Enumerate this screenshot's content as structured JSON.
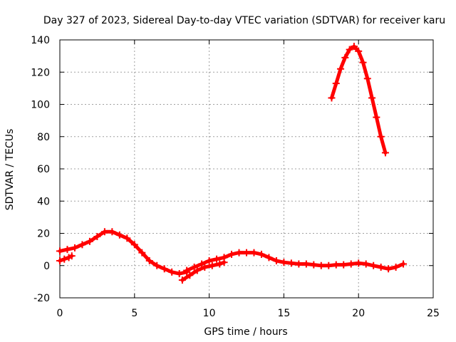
{
  "chart_data": {
    "type": "scatter",
    "title": "Day 327 of 2023, Sidereal Day-to-day VTEC variation (SDTVAR) for receiver karu",
    "xlabel": "GPS time / hours",
    "ylabel": "SDTVAR / TECUs",
    "xlim": [
      0,
      25
    ],
    "ylim": [
      -20,
      140
    ],
    "xticks": [
      0,
      5,
      10,
      15,
      20,
      25
    ],
    "yticks": [
      -20,
      0,
      20,
      40,
      60,
      80,
      100,
      120,
      140
    ],
    "grid": true,
    "marker": "plus",
    "series": [
      {
        "name": "SDTVAR",
        "color": "#ff0000",
        "segments": [
          {
            "x": [
              0.0,
              0.3,
              0.6,
              0.8
            ],
            "y": [
              3,
              4,
              5,
              6
            ]
          },
          {
            "x": [
              0.0,
              0.5,
              1.0,
              1.5,
              2.0,
              2.5,
              3.0,
              3.5,
              4.0,
              4.5,
              5.0,
              5.5,
              6.0,
              6.5,
              7.0,
              7.5,
              8.0,
              8.5
            ],
            "y": [
              9,
              10,
              11,
              13,
              15,
              18,
              21,
              21,
              19,
              17,
              13,
              8,
              3,
              0,
              -2,
              -4,
              -5,
              -4
            ]
          },
          {
            "x": [
              8.2,
              8.7,
              9.2,
              9.7,
              10.2,
              10.7,
              11.0
            ],
            "y": [
              -9,
              -6,
              -3,
              -1,
              0,
              1,
              2
            ]
          },
          {
            "x": [
              8.5,
              9.0,
              9.5,
              10.0,
              10.5,
              11.0
            ],
            "y": [
              -3,
              -1,
              1,
              3,
              4,
              5
            ]
          },
          {
            "x": [
              11.0,
              11.5,
              12.0,
              12.5,
              13.0,
              13.5,
              14.0,
              14.5,
              15.0,
              15.5,
              16.0,
              16.5,
              17.0,
              17.5,
              18.0,
              18.5,
              19.0,
              19.5,
              20.0,
              20.5,
              21.0,
              21.5,
              22.0,
              22.5,
              23.0
            ],
            "y": [
              5,
              7,
              8,
              8,
              8,
              7,
              5,
              3,
              2,
              1.5,
              1,
              1,
              0.5,
              0,
              0,
              0.5,
              0.5,
              1,
              1.5,
              1,
              0,
              -1,
              -2,
              -1,
              1
            ]
          },
          {
            "x": [
              18.2,
              18.5,
              18.8,
              19.1,
              19.4,
              19.7,
              20.0,
              20.3,
              20.6,
              20.9,
              21.2,
              21.5,
              21.8
            ],
            "y": [
              104,
              113,
              122,
              129,
              134,
              136,
              133,
              126,
              116,
              104,
              92,
              80,
              70
            ]
          }
        ]
      }
    ]
  }
}
